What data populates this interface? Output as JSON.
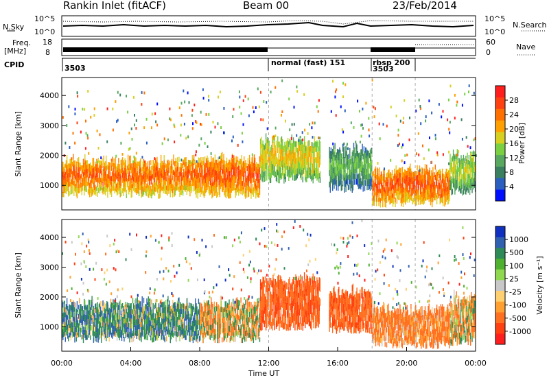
{
  "header": {
    "station": "Rankin Inlet (fitACF)",
    "beam": "Beam 00",
    "date": "23/Feb/2014"
  },
  "strips": {
    "nsky_label": "N.Sky",
    "nsky_ticks": [
      "10^5",
      "10^0"
    ],
    "nsearch_label": "N.Search",
    "nsearch_ticks": [
      "10^5",
      "10^0"
    ],
    "freq_label": "Freq.",
    "freq_unit": "[MHz]",
    "freq_ticks": [
      "18",
      "8"
    ],
    "nave_label": "Nave",
    "nave_ticks": [
      "60",
      "0"
    ],
    "cpid_label": "CPID",
    "cpid_segments": [
      {
        "label": "3503",
        "start_h": 0.0,
        "end_h": 12.0
      },
      {
        "label": "normal (fast) 151",
        "start_h": 12.0,
        "end_h": 18.0
      },
      {
        "label": "rbsp 200",
        "start_h": 18.0,
        "end_h": 20.5
      },
      {
        "label": "3503",
        "start_h": 18.0,
        "end_h": 20.5
      }
    ]
  },
  "chart_data": [
    {
      "type": "heatmap",
      "name": "power",
      "ylabel": "Slant Range [km]",
      "xlim": [
        0,
        24
      ],
      "ylim": [
        180,
        4600
      ],
      "y_ticks": [
        "1000",
        "2000",
        "3000",
        "4000"
      ],
      "colorbar": {
        "label": "Power [dB]",
        "range": [
          0,
          32
        ],
        "ticks": [
          "4",
          "8",
          "12",
          "16",
          "20",
          "24",
          "28"
        ],
        "colors": [
          "#0010ff",
          "#2a5fc0",
          "#3a7f60",
          "#58a860",
          "#7ad040",
          "#d8d020",
          "#ffa000",
          "#ff7000",
          "#ff4010",
          "#ff1e1e"
        ]
      },
      "bands": [
        {
          "start_h": 0.0,
          "end_h": 8.0,
          "range_min": 700,
          "range_max": 1800,
          "level_db": 26
        },
        {
          "start_h": 8.0,
          "end_h": 11.5,
          "range_min": 700,
          "range_max": 1900,
          "level_db": 27
        },
        {
          "start_h": 11.5,
          "end_h": 15.0,
          "range_min": 1200,
          "range_max": 2500,
          "level_db": 20
        },
        {
          "start_h": 15.5,
          "end_h": 18.0,
          "range_min": 900,
          "range_max": 2200,
          "level_db": 14
        },
        {
          "start_h": 18.0,
          "end_h": 22.5,
          "range_min": 400,
          "range_max": 1500,
          "level_db": 27
        },
        {
          "start_h": 22.5,
          "end_h": 24.0,
          "range_min": 800,
          "range_max": 2000,
          "level_db": 18
        }
      ]
    },
    {
      "type": "heatmap",
      "name": "velocity",
      "xlabel": "Time UT",
      "ylabel": "Slant Range [km]",
      "xlim": [
        0,
        24
      ],
      "ylim": [
        180,
        4600
      ],
      "x_ticks": [
        "00:00",
        "04:00",
        "08:00",
        "12:00",
        "16:00",
        "20:00",
        "00:00"
      ],
      "y_ticks": [
        "1000",
        "2000",
        "3000",
        "4000"
      ],
      "colorbar": {
        "label": "Velocity [m s⁻¹]",
        "ticks": [
          "1000",
          "500",
          "100",
          "25",
          "-25",
          "-100",
          "-500",
          "-1000"
        ],
        "colors": [
          "#1030c0",
          "#3060b0",
          "#2e8b57",
          "#50b030",
          "#90d850",
          "#c8c8c8",
          "#ffd070",
          "#ffa030",
          "#ff7020",
          "#ff4010",
          "#ff1e1e"
        ]
      },
      "bands": [
        {
          "start_h": 0.0,
          "end_h": 8.0,
          "range_min": 600,
          "range_max": 1800,
          "velocity": 200
        },
        {
          "start_h": 8.0,
          "end_h": 11.5,
          "range_min": 600,
          "range_max": 1800,
          "velocity": -100
        },
        {
          "start_h": 11.5,
          "end_h": 15.0,
          "range_min": 1000,
          "range_max": 2600,
          "velocity": -500
        },
        {
          "start_h": 15.5,
          "end_h": 18.0,
          "range_min": 900,
          "range_max": 2200,
          "velocity": -500
        },
        {
          "start_h": 18.0,
          "end_h": 22.5,
          "range_min": 400,
          "range_max": 1600,
          "velocity": -300
        },
        {
          "start_h": 22.5,
          "end_h": 24.0,
          "range_min": 500,
          "range_max": 2000,
          "velocity": -100
        }
      ]
    }
  ]
}
